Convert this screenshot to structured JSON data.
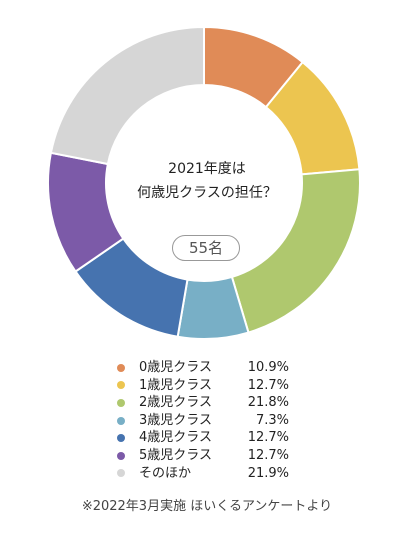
{
  "chart_data": {
    "type": "pie",
    "title_line1": "2021年度は",
    "title_line2": "何歳児クラスの担任？",
    "respondents": "55名",
    "categories": [
      "0歳児クラス",
      "1歳児クラス",
      "2歳児クラス",
      "3歳児クラス",
      "4歳児クラス",
      "5歳児クラス",
      "そのほか"
    ],
    "values": [
      10.9,
      12.7,
      21.8,
      7.3,
      12.7,
      12.7,
      21.9
    ],
    "value_labels": [
      "10.9%",
      "12.7%",
      "21.8%",
      "7.3%",
      "12.7%",
      "12.7%",
      "21.9%"
    ],
    "colors": [
      "#E08B57",
      "#ECC550",
      "#AFC86E",
      "#78AFC6",
      "#4673AF",
      "#7C5AA8",
      "#D6D6D6"
    ],
    "legend_position": "bottom"
  },
  "footnote": "※2022年3月実施 ほいくるアンケートより"
}
